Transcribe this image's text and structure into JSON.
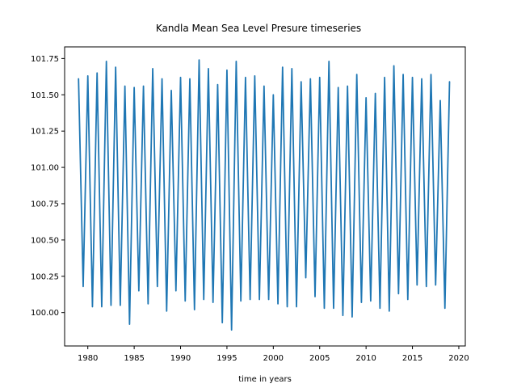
{
  "chart_data": {
    "type": "line",
    "title": "Kandla Mean Sea Level Presure timeseries",
    "xlabel": "time in years",
    "ylabel": "",
    "xlim": [
      1977.5,
      2020.7
    ],
    "ylim": [
      99.77,
      101.83
    ],
    "xticks": [
      1980,
      1985,
      1990,
      1995,
      2000,
      2005,
      2010,
      2015,
      2020
    ],
    "yticks": [
      100.0,
      100.25,
      100.5,
      100.75,
      101.0,
      101.25,
      101.5,
      101.75
    ],
    "ytick_labels": [
      "100.00",
      "100.25",
      "100.50",
      "100.75",
      "101.00",
      "101.25",
      "101.50",
      "101.75"
    ],
    "grid": false,
    "series": [
      {
        "color": "#1f77b4",
        "x": [
          1979.0,
          1979.5,
          1980.0,
          1980.5,
          1981.0,
          1981.5,
          1982.0,
          1982.5,
          1983.0,
          1983.5,
          1984.0,
          1984.5,
          1985.0,
          1985.5,
          1986.0,
          1986.5,
          1987.0,
          1987.5,
          1988.0,
          1988.5,
          1989.0,
          1989.5,
          1990.0,
          1990.5,
          1991.0,
          1991.5,
          1992.0,
          1992.5,
          1993.0,
          1993.5,
          1994.0,
          1994.5,
          1995.0,
          1995.5,
          1996.0,
          1996.5,
          1997.0,
          1997.5,
          1998.0,
          1998.5,
          1999.0,
          1999.5,
          2000.0,
          2000.5,
          2001.0,
          2001.5,
          2002.0,
          2002.5,
          2003.0,
          2003.5,
          2004.0,
          2004.5,
          2005.0,
          2005.5,
          2006.0,
          2006.5,
          2007.0,
          2007.5,
          2008.0,
          2008.5,
          2009.0,
          2009.5,
          2010.0,
          2010.5,
          2011.0,
          2011.5,
          2012.0,
          2012.5,
          2013.0,
          2013.5,
          2014.0,
          2014.5,
          2015.0,
          2015.5,
          2016.0,
          2016.5,
          2017.0,
          2017.5,
          2018.0,
          2018.5,
          2019.0
        ],
        "y": [
          101.61,
          100.18,
          101.63,
          100.04,
          101.65,
          100.04,
          101.73,
          100.05,
          101.69,
          100.05,
          101.56,
          99.92,
          101.55,
          100.15,
          101.56,
          100.06,
          101.68,
          100.18,
          101.61,
          100.01,
          101.53,
          100.15,
          101.62,
          100.08,
          101.61,
          100.02,
          101.74,
          100.09,
          101.68,
          100.07,
          101.57,
          99.93,
          101.67,
          99.88,
          101.73,
          100.08,
          101.62,
          100.09,
          101.63,
          100.09,
          101.56,
          100.09,
          101.5,
          100.06,
          101.69,
          100.04,
          101.68,
          100.04,
          101.59,
          100.24,
          101.61,
          100.11,
          101.62,
          100.03,
          101.73,
          100.03,
          101.55,
          99.98,
          101.56,
          99.97,
          101.64,
          100.07,
          101.48,
          100.08,
          101.51,
          100.03,
          101.62,
          100.01,
          101.7,
          100.13,
          101.64,
          100.09,
          101.62,
          100.19,
          101.61,
          100.18,
          101.64,
          100.19,
          101.46,
          100.03,
          101.59
        ]
      }
    ]
  }
}
